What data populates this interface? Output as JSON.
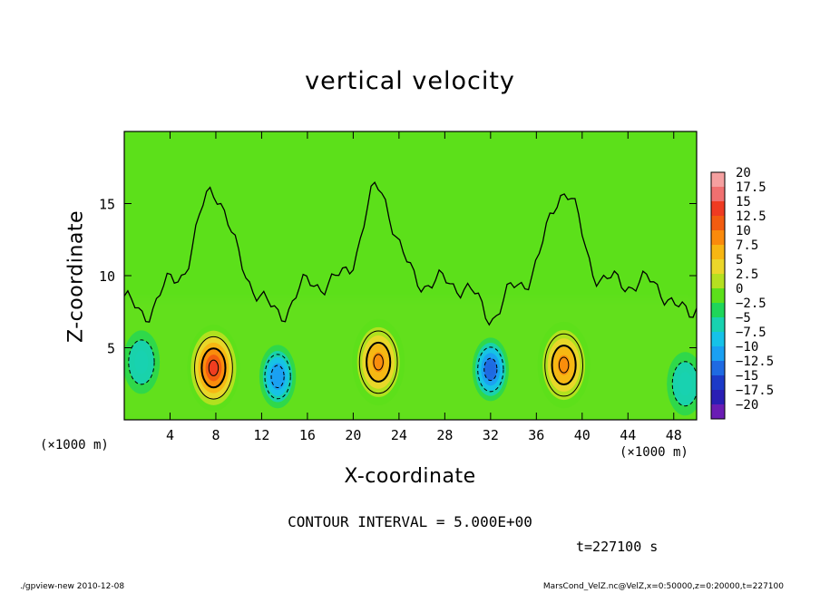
{
  "chart_data": {
    "type": "heatmap",
    "title": "vertical velocity",
    "xlabel": "X-coordinate",
    "ylabel": "Z-coordinate",
    "x_unit": "(×1000 m)",
    "x_unit_right": "(×1000 m)",
    "xlim": [
      0,
      50
    ],
    "ylim": [
      0,
      20
    ],
    "x_ticks": [
      4,
      8,
      12,
      16,
      20,
      24,
      28,
      32,
      36,
      40,
      44,
      48
    ],
    "y_ticks": [
      5,
      10,
      15
    ],
    "colorbar": {
      "levels": [
        20,
        17.5,
        15,
        12.5,
        10,
        7.5,
        5,
        2.5,
        0,
        -2.5,
        -5,
        -7.5,
        -10,
        -12.5,
        -15,
        -17.5,
        -20
      ],
      "labels": [
        "20",
        "17.5",
        "15",
        "12.5",
        "10",
        "7.5",
        "5",
        "2.5",
        "0",
        "−2.5",
        "−5",
        "−7.5",
        "−10",
        "−12.5",
        "−15",
        "−17.5",
        "−20"
      ],
      "colors": [
        "#f5a0a0",
        "#f07070",
        "#ef3b22",
        "#f25c10",
        "#fa8a0c",
        "#f7b612",
        "#ebd62a",
        "#b5e020",
        "#5ce01a",
        "#1fd65a",
        "#18d2b0",
        "#16c2e8",
        "#1aa0f2",
        "#1f6ae2",
        "#1c3ac8",
        "#2a1eb4",
        "#6a1cb4"
      ]
    },
    "updrafts": [
      {
        "x": 7.8,
        "z": 3.6,
        "peak": 15
      },
      {
        "x": 22.2,
        "z": 4.0,
        "peak": 10
      },
      {
        "x": 38.4,
        "z": 3.8,
        "peak": 10
      }
    ],
    "downdrafts": [
      {
        "x": 13.4,
        "z": 3.0,
        "min": -10
      },
      {
        "x": 32.0,
        "z": 3.5,
        "min": -12.5
      },
      {
        "x": 1.5,
        "z": 4.0,
        "min": -5
      },
      {
        "x": 49.0,
        "z": 2.5,
        "min": -5
      }
    ],
    "contour_interval": "CONTOUR INTERVAL = 5.000E+00",
    "time": "t=227100 s"
  },
  "footer": {
    "left": "./gpview-new  2010-12-08",
    "right": "MarsCond_VelZ.nc@VelZ,x=0:50000,z=0:20000,t=227100"
  }
}
